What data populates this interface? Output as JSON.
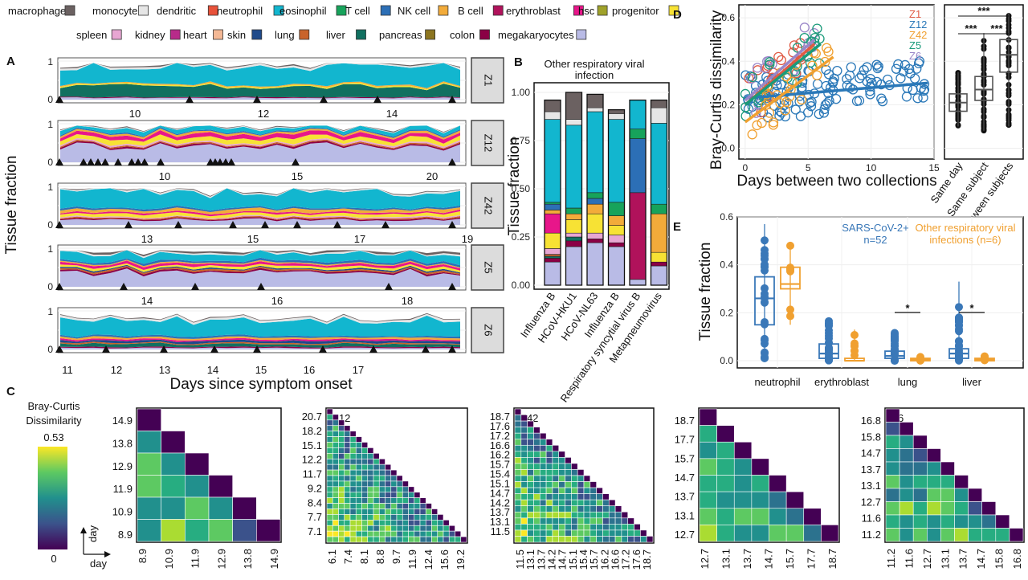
{
  "panel_letters": [
    "A",
    "B",
    "C",
    "D",
    "E"
  ],
  "legend_items": [
    {
      "name": "macrophage",
      "color": "#6b6161"
    },
    {
      "name": "monocyte",
      "color": "#e6e6e6"
    },
    {
      "name": "dendritic",
      "color": "#e8523a"
    },
    {
      "name": "neutrophil",
      "color": "#12b6cf"
    },
    {
      "name": "eosinophil",
      "color": "#17a35b"
    },
    {
      "name": "T cell",
      "color": "#2c6fb6"
    },
    {
      "name": "NK cell",
      "color": "#f2ab3a"
    },
    {
      "name": "B cell",
      "color": "#b0125b"
    },
    {
      "name": "erythroblast",
      "color": "#e8168a"
    },
    {
      "name": "hsc",
      "color": "#a0a22a"
    },
    {
      "name": "progenitor",
      "color": "#f7e234"
    },
    {
      "name": "spleen",
      "color": "#e7a6d2"
    },
    {
      "name": "kidney",
      "color": "#b72b8a"
    },
    {
      "name": "heart",
      "color": "#f4b895"
    },
    {
      "name": "skin",
      "color": "#1f4a8a"
    },
    {
      "name": "lung",
      "color": "#c9632a"
    },
    {
      "name": "liver",
      "color": "#117060"
    },
    {
      "name": "pancreas",
      "color": "#8c7520"
    },
    {
      "name": "colon",
      "color": "#8b0045"
    },
    {
      "name": "megakaryocytes",
      "color": "#b9bbe6"
    }
  ],
  "panel_a": {
    "ylabel": "Tissue fraction",
    "xlabel": "Days since symptom onset",
    "y_ticks": [
      "0",
      "1"
    ],
    "subjects": [
      {
        "id": "Z1",
        "x_ticks": [
          "10",
          "12",
          "14"
        ]
      },
      {
        "id": "Z12",
        "x_ticks": [
          "10",
          "15",
          "20"
        ]
      },
      {
        "id": "Z42",
        "x_ticks": [
          "13",
          "15",
          "17",
          "19"
        ]
      },
      {
        "id": "Z5",
        "x_ticks": [
          "14",
          "16",
          "18"
        ]
      },
      {
        "id": "Z6",
        "x_ticks": [
          "11",
          "12",
          "13",
          "14",
          "15",
          "16",
          "17"
        ]
      }
    ]
  },
  "chart_data": [
    {
      "panel": "B",
      "type": "bar",
      "title": "Other respiratory viral infection",
      "ylabel": "Tissue fraction",
      "categories": [
        "Influenza B",
        "HCoV-HKU1",
        "HCoV-NL63",
        "Influenza B",
        "Respiratory syncytial virus B",
        "Metapneumovirus"
      ],
      "y_ticks": [
        "0.00",
        "0.25",
        "0.50",
        "0.75",
        "1.00"
      ],
      "ylim": [
        0,
        1.05
      ],
      "stacks": [
        [
          [
            "megakaryocytes",
            0.12
          ],
          [
            "colon",
            0.02
          ],
          [
            "liver",
            0.01
          ],
          [
            "lung",
            0.01
          ],
          [
            "spleen",
            0.03
          ],
          [
            "progenitor",
            0.08
          ],
          [
            "erythroblast",
            0.1
          ],
          [
            "NK cell",
            0.02
          ],
          [
            "T cell",
            0.03
          ],
          [
            "eosinophil",
            0.01
          ],
          [
            "neutrophil",
            0.43
          ],
          [
            "monocyte",
            0.04
          ],
          [
            "macrophage",
            0.06
          ]
        ],
        [
          [
            "megakaryocytes",
            0.2
          ],
          [
            "colon",
            0.03
          ],
          [
            "liver",
            0.02
          ],
          [
            "spleen",
            0.02
          ],
          [
            "progenitor",
            0.07
          ],
          [
            "NK cell",
            0.03
          ],
          [
            "eosinophil",
            0.03
          ],
          [
            "neutrophil",
            0.43
          ],
          [
            "monocyte",
            0.03
          ],
          [
            "macrophage",
            0.14
          ]
        ],
        [
          [
            "megakaryocytes",
            0.22
          ],
          [
            "colon",
            0.02
          ],
          [
            "spleen",
            0.03
          ],
          [
            "progenitor",
            0.1
          ],
          [
            "NK cell",
            0.05
          ],
          [
            "T cell",
            0.03
          ],
          [
            "eosinophil",
            0.03
          ],
          [
            "neutrophil",
            0.42
          ],
          [
            "monocyte",
            0.02
          ],
          [
            "macrophage",
            0.07
          ]
        ],
        [
          [
            "megakaryocytes",
            0.2
          ],
          [
            "colon",
            0.02
          ],
          [
            "spleen",
            0.04
          ],
          [
            "progenitor",
            0.05
          ],
          [
            "NK cell",
            0.05
          ],
          [
            "eosinophil",
            0.07
          ],
          [
            "neutrophil",
            0.43
          ],
          [
            "monocyte",
            0.03
          ],
          [
            "macrophage",
            0.02
          ]
        ],
        [
          [
            "megakaryocytes",
            0.03
          ],
          [
            "B cell",
            0.45
          ],
          [
            "T cell",
            0.28
          ],
          [
            "eosinophil",
            0.05
          ],
          [
            "neutrophil",
            0.15
          ]
        ],
        [
          [
            "megakaryocytes",
            0.1
          ],
          [
            "colon",
            0.02
          ],
          [
            "progenitor",
            0.05
          ],
          [
            "NK cell",
            0.2
          ],
          [
            "eosinophil",
            0.05
          ],
          [
            "neutrophil",
            0.42
          ],
          [
            "monocyte",
            0.08
          ],
          [
            "macrophage",
            0.04
          ]
        ]
      ]
    },
    {
      "panel": "D",
      "type": "scatter",
      "ylabel": "Bray-Curtis dissimilarity",
      "xlabel": "Days between two collections",
      "x_ticks": [
        "0",
        "5",
        "10",
        "15"
      ],
      "y_ticks": [
        "0.0",
        "0.2",
        "0.4",
        "0.6"
      ],
      "xlim": [
        -0.5,
        15
      ],
      "ylim": [
        -0.05,
        0.66
      ],
      "legend": [
        {
          "name": "Z1",
          "color": "#e05a44"
        },
        {
          "name": "Z12",
          "color": "#2a78b8"
        },
        {
          "name": "Z42",
          "color": "#f0a030"
        },
        {
          "name": "Z5",
          "color": "#1a9a7a"
        },
        {
          "name": "Z6",
          "color": "#9a86c8"
        }
      ],
      "fits": [
        {
          "series": "Z12",
          "x": [
            0,
            14.5
          ],
          "y": [
            0.23,
            0.3
          ]
        },
        {
          "series": "Z1",
          "x": [
            0,
            5.5
          ],
          "y": [
            0.2,
            0.48
          ]
        },
        {
          "series": "Z6",
          "x": [
            0,
            5.5
          ],
          "y": [
            0.22,
            0.5
          ]
        },
        {
          "series": "Z5",
          "x": [
            0,
            6
          ],
          "y": [
            0.2,
            0.48
          ]
        },
        {
          "series": "Z42",
          "x": [
            0,
            7
          ],
          "y": [
            0.12,
            0.42
          ]
        }
      ]
    },
    {
      "panel": "D-box",
      "type": "box",
      "categories": [
        "Same day",
        "Same subject",
        "Between subjects"
      ],
      "significance": [
        "***",
        "***",
        "***"
      ],
      "boxes": [
        {
          "q1": 0.17,
          "med": 0.21,
          "q3": 0.25,
          "lo": 0.1,
          "hi": 0.35
        },
        {
          "q1": 0.22,
          "med": 0.27,
          "q3": 0.33,
          "lo": 0.08,
          "hi": 0.53
        },
        {
          "q1": 0.35,
          "med": 0.43,
          "q3": 0.5,
          "lo": 0.1,
          "hi": 0.62
        }
      ]
    },
    {
      "panel": "E",
      "type": "box",
      "ylabel": "Tissue fraction",
      "y_ticks": [
        "0.0",
        "0.2",
        "0.4",
        "0.6"
      ],
      "ylim": [
        -0.03,
        0.6
      ],
      "categories": [
        "neutrophil",
        "erythroblast",
        "lung",
        "liver"
      ],
      "significance": [
        "",
        "",
        "*",
        "*"
      ],
      "series": [
        {
          "name": "SARS-CoV-2+",
          "label_line2": "n=52",
          "color": "#3a78b8",
          "boxes": [
            {
              "q1": 0.15,
              "med": 0.26,
              "q3": 0.35,
              "lo": 0.01,
              "hi": 0.57
            },
            {
              "q1": 0.01,
              "med": 0.03,
              "q3": 0.07,
              "lo": 0,
              "hi": 0.17
            },
            {
              "q1": 0.01,
              "med": 0.02,
              "q3": 0.04,
              "lo": 0,
              "hi": 0.12
            },
            {
              "q1": 0.01,
              "med": 0.03,
              "q3": 0.05,
              "lo": 0,
              "hi": 0.33
            }
          ]
        },
        {
          "name": "Other respiratory viral",
          "label_line2": "infections (n=6)",
          "color": "#f0a030",
          "boxes": [
            {
              "q1": 0.3,
              "med": 0.32,
              "q3": 0.39,
              "lo": 0.15,
              "hi": 0.48
            },
            {
              "q1": 0,
              "med": 0,
              "q3": 0.01,
              "lo": 0,
              "hi": 0.13
            },
            {
              "q1": 0,
              "med": 0.005,
              "q3": 0.01,
              "lo": 0,
              "hi": 0.02
            },
            {
              "q1": 0,
              "med": 0.005,
              "q3": 0.01,
              "lo": 0,
              "hi": 0.02
            }
          ]
        }
      ]
    }
  ],
  "panel_c": {
    "colorbar_title_1": "Bray-Curtis",
    "colorbar_title_2": "Dissimilarity",
    "colorbar_max": "0.53",
    "colorbar_min": "0",
    "axis_day_y": "day",
    "axis_day_x": "day",
    "heatmaps": [
      {
        "id": "Z1",
        "n": 6,
        "y_labels": [
          "14.9",
          "13.8",
          "12.9",
          "11.9",
          "10.9",
          "8.9"
        ],
        "x_labels": [
          "8.9",
          "10.9",
          "11.9",
          "12.9",
          "13.8",
          "14.9"
        ]
      },
      {
        "id": "Z12",
        "n": 24,
        "y_labels": [
          "20.7",
          "18.2",
          "15.1",
          "12.2",
          "11.7",
          "9.2",
          "8.4",
          "7.7",
          "7.1"
        ],
        "x_labels": [
          "6.1",
          "7.4",
          "8.1",
          "8.8",
          "9.7",
          "11.9",
          "12.4",
          "15.6",
          "19.2"
        ]
      },
      {
        "id": "Z42",
        "n": 22,
        "y_labels": [
          "18.7",
          "17.6",
          "17.2",
          "16.6",
          "16.2",
          "15.7",
          "15.4",
          "15.1",
          "14.7",
          "14.2",
          "13.7",
          "13.1",
          "11.5"
        ],
        "x_labels": [
          "11.5",
          "13.1",
          "13.7",
          "14.2",
          "14.7",
          "15.1",
          "15.4",
          "15.7",
          "16.2",
          "16.6",
          "17.2",
          "17.6",
          "18.7"
        ]
      },
      {
        "id": "Z5",
        "n": 8,
        "y_labels": [
          "18.7",
          "17.7",
          "15.7",
          "14.7",
          "13.7",
          "13.1",
          "12.7"
        ],
        "x_labels": [
          "12.7",
          "13.1",
          "13.7",
          "14.7",
          "15.7",
          "17.7",
          "18.7"
        ]
      },
      {
        "id": "Z6",
        "n": 10,
        "y_labels": [
          "16.8",
          "15.8",
          "14.7",
          "13.7",
          "13.1",
          "12.7",
          "11.6",
          "11.2"
        ],
        "x_labels": [
          "11.2",
          "11.6",
          "12.7",
          "13.1",
          "13.7",
          "14.7",
          "15.8",
          "16.8"
        ]
      }
    ]
  }
}
